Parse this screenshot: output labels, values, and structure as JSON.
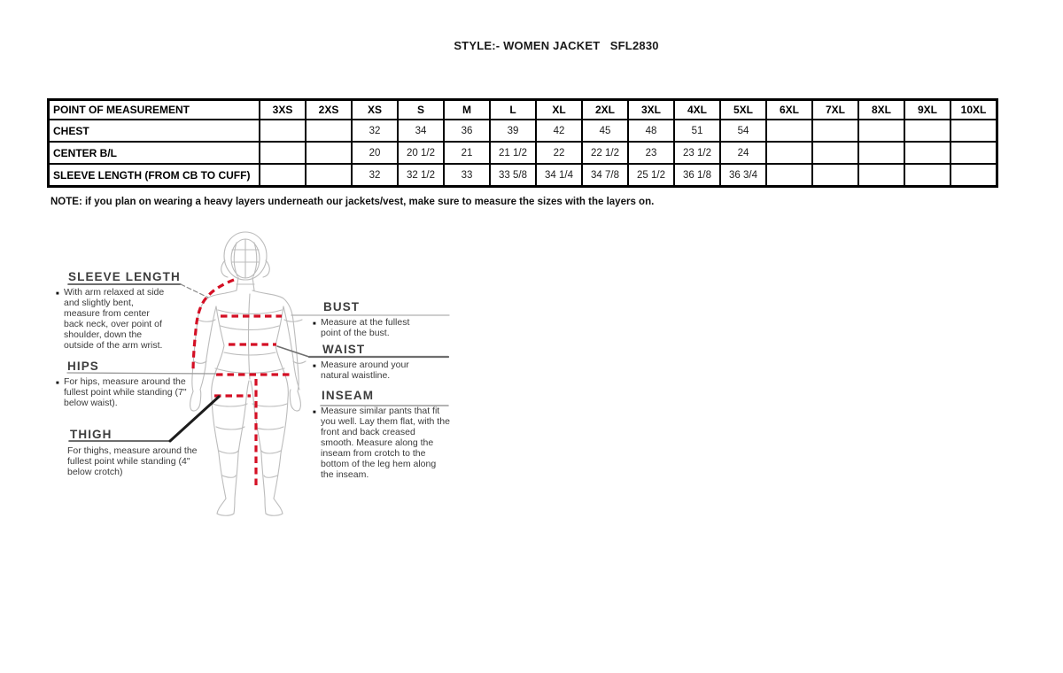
{
  "title": "STYLE:- WOMEN JACKET   SFL2830",
  "note": "NOTE: if you plan on wearing a heavy layers underneath our jackets/vest, make sure to measure the sizes with the layers on.",
  "size_chart": {
    "columns": [
      "POINT OF MEASUREMENT",
      "3XS",
      "2XS",
      "XS",
      "S",
      "M",
      "L",
      "XL",
      "2XL",
      "3XL",
      "4XL",
      "5XL",
      "6XL",
      "7XL",
      "8XL",
      "9XL",
      "10XL"
    ],
    "rows": [
      {
        "label": "CHEST",
        "values": [
          "",
          "",
          "32",
          "34",
          "36",
          "39",
          "42",
          "45",
          "48",
          "51",
          "54",
          "",
          "",
          "",
          "",
          ""
        ]
      },
      {
        "label": "CENTER B/L",
        "values": [
          "",
          "",
          "20",
          "20 1/2",
          "21",
          "21 1/2",
          "22",
          "22 1/2",
          "23",
          "23 1/2",
          "24",
          "",
          "",
          "",
          "",
          ""
        ]
      },
      {
        "label": "SLEEVE LENGTH (FROM CB TO CUFF)",
        "values": [
          "",
          "",
          "32",
          "32 1/2",
          "33",
          "33 5/8",
          "34 1/4",
          "34 7/8",
          "25 1/2",
          "36 1/8",
          "36 3/4",
          "",
          "",
          "",
          "",
          ""
        ]
      }
    ]
  },
  "measurement_guide": {
    "sleeve_length": {
      "heading": "SLEEVE LENGTH",
      "description": "With arm relaxed at side and slightly bent, measure from center back neck, over point of shoulder, down the outside of the arm wrist."
    },
    "hips": {
      "heading": "HIPS",
      "description": "For hips, measure around the fullest point while standing (7\" below waist)."
    },
    "thigh": {
      "heading": "THIGH",
      "description": "For thighs, measure around the fullest point while standing (4\" below crotch)"
    },
    "bust": {
      "heading": "BUST",
      "description": "Measure at the fullest point of the bust."
    },
    "waist": {
      "heading": "WAIST",
      "description": "Measure around your natural waistline."
    },
    "inseam": {
      "heading": "INSEAM",
      "description": "Measure similar pants that fit you well. Lay them flat, with the front and back creased smooth. Measure along the inseam from crotch to the bottom of the leg hem along the inseam."
    }
  },
  "colors": {
    "measure_line_red": "#d40f24",
    "wireframe_gray": "#bcbcbc",
    "label_dark": "#3d3d3d"
  }
}
